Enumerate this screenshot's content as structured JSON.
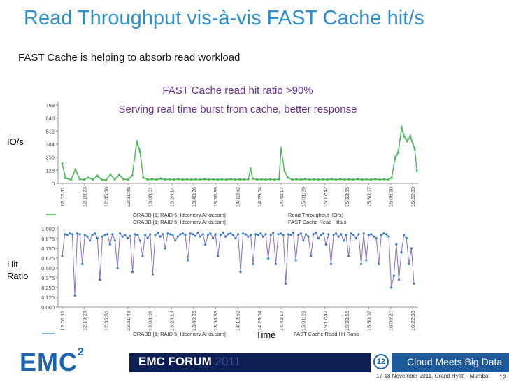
{
  "slide": {
    "title": "Read Throughput vis-à-vis FAST Cache hit/s",
    "subtitle": "FAST Cache is helping to absorb read workload",
    "callout_line1": "FAST Cache read hit ratio >90%",
    "callout_line2": "Serving real time burst from cache, better response",
    "y_label_top": "IO/s",
    "y_label_bottom_1": "Hit",
    "y_label_bottom_2": "Ratio",
    "x_label": "Time"
  },
  "footer": {
    "logo": "EMC",
    "logo_sup": "2",
    "forum": "EMC FORUM",
    "forum_year": "2011",
    "page_circle": "12",
    "tagline": "Cloud Meets Big Data",
    "dateline": "17-18 November 2011, Grand Hyatt - Mumbai",
    "page_number": "12"
  },
  "colors": {
    "title": "#2f8fc8",
    "callout": "#6b2d8f",
    "series_throughput": "#9ab0d8",
    "series_hits": "#3fbf3f",
    "series_ratio": "#8a6fc0",
    "ratio_points": "#3a7fd0",
    "footer_dark": "#0e1f55",
    "footer_blue": "#1c5a9c"
  },
  "chart_data": [
    {
      "type": "line",
      "title": "",
      "ylabel": "IO/s",
      "xlabel": "",
      "yticks": [
        "0",
        "128",
        "256",
        "384",
        "512",
        "640",
        "768"
      ],
      "ylim": [
        0,
        768
      ],
      "xticks": [
        "12:03:11",
        "12:19:23",
        "12:35:36",
        "12:51:48",
        "13:08:01",
        "13:24:14",
        "13:40:26",
        "13:56:39",
        "14:12:52",
        "14:29:04",
        "14:45:17",
        "15:01:29",
        "15:17:42",
        "15:33:55",
        "15:50:07",
        "16:06:20",
        "16:22:33"
      ],
      "x_range_index": [
        0,
        16
      ],
      "legend_position": "bottom",
      "series": [
        {
          "name": "Read Throughput (IO/s)",
          "legend_label": "ORADB [1; RAID 5; Idccmsrv.Arka.com]",
          "points": [
            [
              0,
              200
            ],
            [
              0.15,
              60
            ],
            [
              0.4,
              40
            ],
            [
              0.6,
              140
            ],
            [
              0.8,
              45
            ],
            [
              1,
              40
            ],
            [
              1.2,
              60
            ],
            [
              1.4,
              40
            ],
            [
              1.6,
              80
            ],
            [
              1.8,
              40
            ],
            [
              2,
              35
            ],
            [
              2.2,
              90
            ],
            [
              2.4,
              40
            ],
            [
              2.6,
              90
            ],
            [
              2.8,
              45
            ],
            [
              3,
              40
            ],
            [
              3.2,
              80
            ],
            [
              3.4,
              420
            ],
            [
              3.55,
              330
            ],
            [
              3.7,
              60
            ],
            [
              3.9,
              40
            ],
            [
              4.1,
              45
            ],
            [
              4.3,
              40
            ],
            [
              4.5,
              50
            ],
            [
              4.7,
              40
            ],
            [
              4.9,
              42
            ],
            [
              5.1,
              40
            ],
            [
              5.3,
              45
            ],
            [
              5.5,
              40
            ],
            [
              5.7,
              42
            ],
            [
              5.9,
              40
            ],
            [
              6.1,
              42
            ],
            [
              6.3,
              40
            ],
            [
              6.5,
              45
            ],
            [
              6.7,
              40
            ],
            [
              6.9,
              42
            ],
            [
              7.1,
              40
            ],
            [
              7.3,
              42
            ],
            [
              7.5,
              40
            ],
            [
              7.7,
              45
            ],
            [
              7.9,
              40
            ],
            [
              8.1,
              42
            ],
            [
              8.3,
              40
            ],
            [
              8.5,
              42
            ],
            [
              8.6,
              150
            ],
            [
              8.7,
              50
            ],
            [
              8.9,
              40
            ],
            [
              9.1,
              42
            ],
            [
              9.3,
              40
            ],
            [
              9.5,
              42
            ],
            [
              9.7,
              40
            ],
            [
              9.9,
              45
            ],
            [
              10.0,
              350
            ],
            [
              10.15,
              130
            ],
            [
              10.3,
              60
            ],
            [
              10.5,
              40
            ],
            [
              10.7,
              42
            ],
            [
              10.9,
              40
            ],
            [
              11.1,
              45
            ],
            [
              11.3,
              40
            ],
            [
              11.5,
              42
            ],
            [
              11.7,
              40
            ],
            [
              11.9,
              42
            ],
            [
              12.1,
              40
            ],
            [
              12.3,
              45
            ],
            [
              12.5,
              40
            ],
            [
              12.7,
              45
            ],
            [
              12.9,
              40
            ],
            [
              13.1,
              42
            ],
            [
              13.3,
              40
            ],
            [
              13.5,
              45
            ],
            [
              13.7,
              40
            ],
            [
              13.9,
              42
            ],
            [
              14.1,
              40
            ],
            [
              14.3,
              45
            ],
            [
              14.5,
              40
            ],
            [
              14.7,
              42
            ],
            [
              14.9,
              40
            ],
            [
              15.05,
              60
            ],
            [
              15.2,
              260
            ],
            [
              15.35,
              320
            ],
            [
              15.5,
              560
            ],
            [
              15.6,
              480
            ],
            [
              15.75,
              430
            ],
            [
              15.9,
              470
            ],
            [
              16.1,
              350
            ],
            [
              16.2,
              130
            ]
          ]
        },
        {
          "name": "FAST Cache Read Hits/s",
          "legend_label": "ORADB [1; RAID 5; Idccmsrv.Arka.com]",
          "points": [
            [
              0,
              190
            ],
            [
              0.15,
              50
            ],
            [
              0.4,
              35
            ],
            [
              0.6,
              130
            ],
            [
              0.8,
              40
            ],
            [
              1,
              35
            ],
            [
              1.2,
              55
            ],
            [
              1.4,
              35
            ],
            [
              1.6,
              70
            ],
            [
              1.8,
              35
            ],
            [
              2,
              30
            ],
            [
              2.2,
              85
            ],
            [
              2.4,
              35
            ],
            [
              2.6,
              80
            ],
            [
              2.8,
              40
            ],
            [
              3,
              35
            ],
            [
              3.2,
              75
            ],
            [
              3.4,
              400
            ],
            [
              3.55,
              310
            ],
            [
              3.7,
              55
            ],
            [
              3.9,
              35
            ],
            [
              4.1,
              40
            ],
            [
              4.3,
              35
            ],
            [
              4.5,
              45
            ],
            [
              4.7,
              35
            ],
            [
              4.9,
              38
            ],
            [
              5.1,
              35
            ],
            [
              5.3,
              40
            ],
            [
              5.5,
              35
            ],
            [
              5.7,
              38
            ],
            [
              5.9,
              35
            ],
            [
              6.1,
              38
            ],
            [
              6.3,
              35
            ],
            [
              6.5,
              40
            ],
            [
              6.7,
              35
            ],
            [
              6.9,
              38
            ],
            [
              7.1,
              35
            ],
            [
              7.3,
              38
            ],
            [
              7.5,
              35
            ],
            [
              7.7,
              40
            ],
            [
              7.9,
              35
            ],
            [
              8.1,
              38
            ],
            [
              8.3,
              35
            ],
            [
              8.5,
              38
            ],
            [
              8.6,
              140
            ],
            [
              8.7,
              45
            ],
            [
              8.9,
              35
            ],
            [
              9.1,
              38
            ],
            [
              9.3,
              35
            ],
            [
              9.5,
              38
            ],
            [
              9.7,
              35
            ],
            [
              9.9,
              40
            ],
            [
              10.0,
              330
            ],
            [
              10.15,
              120
            ],
            [
              10.3,
              55
            ],
            [
              10.5,
              35
            ],
            [
              10.7,
              38
            ],
            [
              10.9,
              35
            ],
            [
              11.1,
              40
            ],
            [
              11.3,
              35
            ],
            [
              11.5,
              38
            ],
            [
              11.7,
              35
            ],
            [
              11.9,
              38
            ],
            [
              12.1,
              35
            ],
            [
              12.3,
              40
            ],
            [
              12.5,
              35
            ],
            [
              12.7,
              40
            ],
            [
              12.9,
              35
            ],
            [
              13.1,
              38
            ],
            [
              13.3,
              35
            ],
            [
              13.5,
              40
            ],
            [
              13.7,
              35
            ],
            [
              13.9,
              38
            ],
            [
              14.1,
              35
            ],
            [
              14.3,
              40
            ],
            [
              14.5,
              35
            ],
            [
              14.7,
              38
            ],
            [
              14.9,
              35
            ],
            [
              15.05,
              55
            ],
            [
              15.2,
              240
            ],
            [
              15.35,
              300
            ],
            [
              15.5,
              540
            ],
            [
              15.6,
              460
            ],
            [
              15.75,
              410
            ],
            [
              15.9,
              450
            ],
            [
              16.1,
              330
            ],
            [
              16.2,
              120
            ]
          ]
        }
      ],
      "legend": [
        "Read Throughput (IO/s)",
        "FAST Cache Read Hits/s"
      ],
      "grid": false
    },
    {
      "type": "line",
      "title": "",
      "ylabel": "Hit Ratio",
      "xlabel": "Time",
      "yticks": [
        "0.000",
        "0.125",
        "0.250",
        "0.375",
        "0.500",
        "0.625",
        "0.750",
        "0.875",
        "1.000"
      ],
      "ylim": [
        0,
        1
      ],
      "xticks": [
        "12:03:11",
        "12:19:23",
        "12:35:36",
        "12:51:48",
        "13:08:01",
        "13:24:14",
        "13:40:26",
        "13:56:39",
        "14:12:52",
        "14:29:04",
        "14:45:17",
        "15:01:29",
        "15:17:42",
        "15:33:55",
        "15:50:07",
        "16:06:20",
        "16:22:33"
      ],
      "x_range_index": [
        0,
        16
      ],
      "legend_position": "bottom",
      "series": [
        {
          "name": "FAST Cache Read Hit Ratio",
          "legend_label": "ORADB [1; RAID 5; Idccmsrv.Arka.com]",
          "values": [
            0.65,
            0.93,
            0.92,
            0.94,
            0.93,
            0.15,
            0.94,
            0.93,
            0.55,
            0.92,
            0.9,
            0.85,
            0.92,
            0.94,
            0.88,
            0.35,
            0.9,
            0.92,
            0.93,
            0.8,
            0.93,
            0.85,
            0.5,
            0.94,
            0.9,
            0.92,
            0.88,
            0.91,
            0.45,
            0.93,
            0.92,
            0.85,
            0.65,
            0.92,
            0.88,
            0.93,
            0.42,
            0.92,
            0.95,
            0.9,
            0.93,
            0.75,
            0.94,
            0.93,
            0.92,
            0.85,
            0.9,
            0.93,
            0.94,
            0.92,
            0.6,
            0.94,
            0.93,
            0.91,
            0.95,
            0.9,
            0.93,
            0.8,
            0.92,
            0.94,
            0.88,
            0.93,
            0.65,
            0.92,
            0.95,
            0.9,
            0.93,
            0.94,
            0.92,
            0.88,
            0.93,
            0.45,
            0.94,
            0.93,
            0.9,
            0.92,
            0.55,
            0.93,
            0.92,
            0.94,
            0.9,
            0.93,
            0.62,
            0.92,
            0.95,
            0.55,
            0.93,
            0.94,
            0.92,
            0.3,
            0.93,
            0.92,
            0.95,
            0.6,
            0.92,
            0.94,
            0.85,
            0.93,
            0.9,
            0.65,
            0.93,
            0.95,
            0.88,
            0.92,
            0.94,
            0.8,
            0.93,
            0.55,
            0.92,
            0.94,
            0.9,
            0.93,
            0.85,
            0.92,
            0.65,
            0.94,
            0.92,
            0.88,
            0.93,
            0.55,
            0.94,
            0.6,
            0.92,
            0.93,
            0.9,
            0.88,
            0.55,
            0.92,
            0.94,
            0.93,
            0.9,
            0.25,
            0.4,
            0.8,
            0.35,
            0.7,
            0.92,
            0.88,
            0.55,
            0.75,
            0.3
          ]
        }
      ],
      "legend": [
        "FAST Cache Read Hit Ratio"
      ],
      "grid": false
    }
  ]
}
